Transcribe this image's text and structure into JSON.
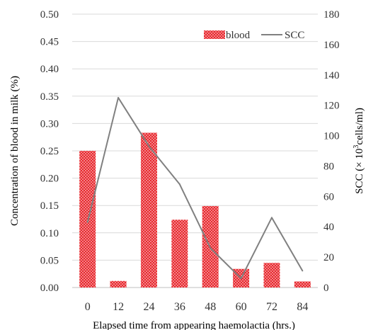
{
  "chart_data": {
    "type": "bar",
    "categories": [
      "0",
      "12",
      "24",
      "36",
      "48",
      "60",
      "72",
      "84"
    ],
    "series": [
      {
        "name": "blood",
        "kind": "bar",
        "axis": "left",
        "color": "#e8282e",
        "values": [
          0.25,
          0.012,
          0.283,
          0.124,
          0.149,
          0.034,
          0.045,
          0.011
        ]
      },
      {
        "name": "SCC",
        "kind": "line",
        "axis": "right",
        "color": "#808080",
        "values": [
          43,
          125,
          93,
          68,
          26,
          6,
          46,
          11
        ]
      }
    ],
    "xlabel": "Elapsed time from appearing haemolactia (hrs.)",
    "ylabel": "Concentration of blood in milk (%)",
    "y2label_prefix": "SCC (× 10",
    "y2label_sup": "3",
    "y2label_suffix": "cells/ml)",
    "ylim": [
      0,
      0.5
    ],
    "y_ticks": [
      "0.00",
      "0.05",
      "0.10",
      "0.15",
      "0.20",
      "0.25",
      "0.30",
      "0.35",
      "0.40",
      "0.45",
      "0.50"
    ],
    "y2lim": [
      0,
      180
    ],
    "y2_ticks": [
      "0",
      "20",
      "40",
      "60",
      "80",
      "100",
      "120",
      "140",
      "160",
      "180"
    ],
    "grid": true,
    "legend_position": "top-right"
  }
}
